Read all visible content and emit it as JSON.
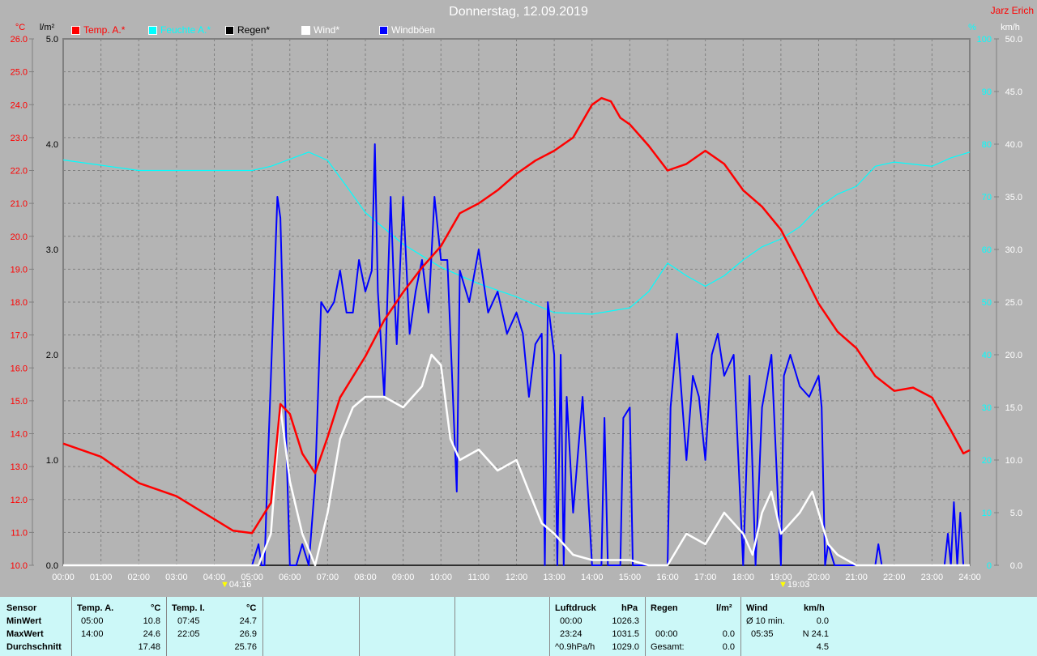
{
  "header": {
    "title": "Donnerstag, 12.09.2019",
    "author": "Jarz Erich"
  },
  "legend": [
    {
      "label": "Temp. A.*",
      "color": "#ff0000"
    },
    {
      "label": "Feuchte A.*",
      "color": "#00ffff"
    },
    {
      "label": "Regen*",
      "color": "#000000"
    },
    {
      "label": "Wind*",
      "color": "#ffffff"
    },
    {
      "label": "Windböen",
      "color": "#0000ff"
    }
  ],
  "markers": {
    "sunrise": "04:16",
    "sunset": "19:03"
  },
  "chart_data": {
    "type": "line",
    "title": "Donnerstag, 12.09.2019",
    "axes": {
      "temp": {
        "unit": "°C",
        "range": [
          10,
          26
        ],
        "ticks": [
          "10.0",
          "11.0",
          "12.0",
          "13.0",
          "14.0",
          "15.0",
          "16.0",
          "17.0",
          "18.0",
          "19.0",
          "20.0",
          "21.0",
          "22.0",
          "23.0",
          "24.0",
          "25.0",
          "26.0"
        ]
      },
      "rain": {
        "unit": "l/m²",
        "range": [
          0,
          5
        ],
        "ticks": [
          "0.0",
          "1.0",
          "2.0",
          "3.0",
          "4.0",
          "5.0"
        ]
      },
      "humidity": {
        "unit": "%",
        "range": [
          0,
          100
        ],
        "ticks": [
          "0",
          "10",
          "20",
          "30",
          "40",
          "50",
          "60",
          "70",
          "80",
          "90",
          "100"
        ]
      },
      "wind": {
        "unit": "km/h",
        "range": [
          0,
          50
        ],
        "ticks": [
          "0.0",
          "5.0",
          "10.0",
          "15.0",
          "20.0",
          "25.0",
          "30.0",
          "35.0",
          "40.0",
          "45.0",
          "50.0"
        ]
      },
      "x": {
        "range": [
          0,
          24
        ],
        "ticks": [
          "00:00",
          "01:00",
          "02:00",
          "03:00",
          "04:00",
          "05:00",
          "06:00",
          "07:00",
          "08:00",
          "09:00",
          "10:00",
          "11:00",
          "12:00",
          "13:00",
          "14:00",
          "15:00",
          "16:00",
          "17:00",
          "18:00",
          "19:00",
          "20:00",
          "21:00",
          "22:00",
          "23:00",
          "24:00"
        ]
      }
    },
    "grid": true,
    "series": [
      {
        "name": "Temp. A.*",
        "axis": "temp",
        "color": "#ff0000",
        "points": [
          [
            0,
            13.7
          ],
          [
            1,
            13.3
          ],
          [
            2,
            12.5
          ],
          [
            3,
            12.1
          ],
          [
            4,
            11.4
          ],
          [
            4.5,
            11.05
          ],
          [
            5,
            10.98
          ],
          [
            5.5,
            11.9
          ],
          [
            5.75,
            14.9
          ],
          [
            6,
            14.6
          ],
          [
            6.33,
            13.4
          ],
          [
            6.67,
            12.8
          ],
          [
            7,
            13.9
          ],
          [
            7.33,
            15.1
          ],
          [
            8,
            16.35
          ],
          [
            8.5,
            17.45
          ],
          [
            9,
            18.3
          ],
          [
            9.5,
            19.05
          ],
          [
            10,
            19.7
          ],
          [
            10.5,
            20.7
          ],
          [
            11,
            21
          ],
          [
            11.5,
            21.4
          ],
          [
            12,
            21.9
          ],
          [
            12.5,
            22.3
          ],
          [
            13,
            22.6
          ],
          [
            13.5,
            23
          ],
          [
            14,
            24
          ],
          [
            14.25,
            24.2
          ],
          [
            14.5,
            24.1
          ],
          [
            14.75,
            23.6
          ],
          [
            15,
            23.4
          ],
          [
            15.5,
            22.75
          ],
          [
            16,
            22
          ],
          [
            16.5,
            22.2
          ],
          [
            17,
            22.6
          ],
          [
            17.5,
            22.2
          ],
          [
            18,
            21.4
          ],
          [
            18.5,
            20.9
          ],
          [
            19,
            20.2
          ],
          [
            19.5,
            19.1
          ],
          [
            20,
            17.95
          ],
          [
            20.5,
            17.1
          ],
          [
            21,
            16.6
          ],
          [
            21.5,
            15.75
          ],
          [
            22,
            15.3
          ],
          [
            22.5,
            15.4
          ],
          [
            23,
            15.1
          ],
          [
            23.5,
            14.1
          ],
          [
            23.83,
            13.4
          ],
          [
            24,
            13.5
          ]
        ]
      },
      {
        "name": "Feuchte A.*",
        "axis": "humidity",
        "color": "#00ffff",
        "points": [
          [
            0,
            77
          ],
          [
            1,
            76
          ],
          [
            2,
            75
          ],
          [
            5,
            75
          ],
          [
            5.5,
            75.8
          ],
          [
            6.5,
            78.5
          ],
          [
            7,
            76.9
          ],
          [
            7.5,
            72
          ],
          [
            8,
            67
          ],
          [
            9,
            61
          ],
          [
            10,
            56.6
          ],
          [
            11,
            53.5
          ],
          [
            12,
            51
          ],
          [
            13,
            48
          ],
          [
            14,
            47.7
          ],
          [
            15,
            48.9
          ],
          [
            15.5,
            52
          ],
          [
            16,
            57.4
          ],
          [
            16.5,
            55
          ],
          [
            17,
            53
          ],
          [
            17.5,
            55
          ],
          [
            18,
            58
          ],
          [
            18.5,
            60.5
          ],
          [
            19,
            62
          ],
          [
            19.5,
            64.3
          ],
          [
            20,
            68
          ],
          [
            20.5,
            70.5
          ],
          [
            21,
            72
          ],
          [
            21.5,
            75.8
          ],
          [
            22,
            76.6
          ],
          [
            23,
            75.8
          ],
          [
            23.5,
            77.4
          ],
          [
            24,
            78.5
          ]
        ]
      },
      {
        "name": "Regen*",
        "axis": "rain",
        "color": "#000000",
        "points": [
          [
            0,
            0
          ],
          [
            24,
            0
          ]
        ]
      },
      {
        "name": "Wind*",
        "axis": "wind",
        "color": "#ffffff",
        "points": [
          [
            0,
            0
          ],
          [
            5.17,
            0
          ],
          [
            5.5,
            3
          ],
          [
            5.75,
            15
          ],
          [
            6,
            8
          ],
          [
            6.33,
            3
          ],
          [
            6.67,
            0
          ],
          [
            7,
            5
          ],
          [
            7.33,
            12
          ],
          [
            7.67,
            15
          ],
          [
            8,
            16
          ],
          [
            8.5,
            16
          ],
          [
            9,
            15
          ],
          [
            9.5,
            17
          ],
          [
            9.75,
            20
          ],
          [
            10,
            19
          ],
          [
            10.25,
            12
          ],
          [
            10.5,
            10
          ],
          [
            11,
            11
          ],
          [
            11.5,
            9
          ],
          [
            12,
            10
          ],
          [
            12.33,
            7
          ],
          [
            12.67,
            4
          ],
          [
            13,
            3
          ],
          [
            13.5,
            1
          ],
          [
            14,
            0.5
          ],
          [
            15,
            0.5
          ],
          [
            15.5,
            0
          ],
          [
            16,
            0
          ],
          [
            16.5,
            3
          ],
          [
            17,
            2
          ],
          [
            17.5,
            5
          ],
          [
            18,
            3
          ],
          [
            18.25,
            1
          ],
          [
            18.5,
            5
          ],
          [
            18.75,
            7
          ],
          [
            19,
            3
          ],
          [
            19.5,
            5
          ],
          [
            19.83,
            7
          ],
          [
            20,
            5
          ],
          [
            20.25,
            2
          ],
          [
            20.5,
            1
          ],
          [
            21,
            0
          ],
          [
            24,
            0
          ]
        ]
      },
      {
        "name": "Windböen",
        "axis": "wind",
        "color": "#0000ff",
        "points": [
          [
            0,
            0
          ],
          [
            5,
            0
          ],
          [
            5.17,
            2
          ],
          [
            5.25,
            0
          ],
          [
            5.33,
            0
          ],
          [
            5.42,
            10
          ],
          [
            5.67,
            35
          ],
          [
            5.75,
            33
          ],
          [
            5.92,
            10
          ],
          [
            6,
            0
          ],
          [
            6.17,
            0
          ],
          [
            6.33,
            2
          ],
          [
            6.5,
            0
          ],
          [
            6.67,
            8
          ],
          [
            6.83,
            25
          ],
          [
            7,
            24
          ],
          [
            7.17,
            25
          ],
          [
            7.33,
            28
          ],
          [
            7.5,
            24
          ],
          [
            7.67,
            24
          ],
          [
            7.83,
            29
          ],
          [
            8,
            26
          ],
          [
            8.17,
            28
          ],
          [
            8.25,
            40
          ],
          [
            8.33,
            26
          ],
          [
            8.5,
            16
          ],
          [
            8.67,
            35
          ],
          [
            8.75,
            27
          ],
          [
            8.83,
            21
          ],
          [
            9,
            35
          ],
          [
            9.17,
            22
          ],
          [
            9.33,
            26
          ],
          [
            9.5,
            29
          ],
          [
            9.67,
            24
          ],
          [
            9.83,
            35
          ],
          [
            10,
            29
          ],
          [
            10.17,
            29
          ],
          [
            10.33,
            15
          ],
          [
            10.42,
            7
          ],
          [
            10.5,
            28
          ],
          [
            10.75,
            25
          ],
          [
            11,
            30
          ],
          [
            11.25,
            24
          ],
          [
            11.5,
            26
          ],
          [
            11.75,
            22
          ],
          [
            12,
            24
          ],
          [
            12.17,
            22
          ],
          [
            12.33,
            16
          ],
          [
            12.5,
            21
          ],
          [
            12.67,
            22
          ],
          [
            12.75,
            0
          ],
          [
            12.83,
            25
          ],
          [
            13,
            20
          ],
          [
            13.08,
            0
          ],
          [
            13.17,
            20
          ],
          [
            13.25,
            0
          ],
          [
            13.33,
            16
          ],
          [
            13.5,
            5
          ],
          [
            13.75,
            16
          ],
          [
            14,
            0
          ],
          [
            14.25,
            0
          ],
          [
            14.33,
            14
          ],
          [
            14.42,
            0
          ],
          [
            14.75,
            0
          ],
          [
            14.83,
            14
          ],
          [
            15,
            15
          ],
          [
            15.08,
            0
          ],
          [
            16,
            0
          ],
          [
            16.08,
            15
          ],
          [
            16.25,
            22
          ],
          [
            16.5,
            10
          ],
          [
            16.67,
            18
          ],
          [
            16.83,
            16
          ],
          [
            17,
            10
          ],
          [
            17.17,
            20
          ],
          [
            17.33,
            22
          ],
          [
            17.5,
            18
          ],
          [
            17.75,
            20
          ],
          [
            18,
            0
          ],
          [
            18.17,
            18
          ],
          [
            18.33,
            0
          ],
          [
            18.5,
            15
          ],
          [
            18.75,
            20
          ],
          [
            19,
            0
          ],
          [
            19.08,
            18
          ],
          [
            19.25,
            20
          ],
          [
            19.5,
            17
          ],
          [
            19.75,
            16
          ],
          [
            20,
            18
          ],
          [
            20.08,
            15
          ],
          [
            20.17,
            0
          ],
          [
            20.25,
            2
          ],
          [
            20.42,
            0
          ],
          [
            21.5,
            0
          ],
          [
            21.58,
            2
          ],
          [
            21.67,
            0
          ],
          [
            23.33,
            0
          ],
          [
            23.42,
            3
          ],
          [
            23.5,
            0
          ],
          [
            23.58,
            6
          ],
          [
            23.67,
            0
          ],
          [
            23.75,
            5
          ],
          [
            23.83,
            0
          ],
          [
            24,
            0
          ]
        ]
      }
    ]
  },
  "summary": {
    "temp_a": {
      "sensor": "Sensor",
      "min_label": "MinWert",
      "max_label": "MaxWert",
      "avg_label": "Durchschnitt",
      "title": "Temp. A.",
      "unit": "°C",
      "min_time": "05:00",
      "min": "10.8",
      "max_time": "14:00",
      "max": "24.6",
      "avg": "17.48"
    },
    "temp_i": {
      "title": "Temp. I.",
      "unit": "°C",
      "min_time": "07:45",
      "min": "24.7",
      "max_time": "22:05",
      "max": "26.9",
      "avg": "25.76"
    },
    "pressure": {
      "title": "Luftdruck",
      "unit": "hPa",
      "min_time": "00:00",
      "min": "1026.3",
      "max_time": "23:24",
      "max": "1031.5",
      "trend": "^0.9hPa/h",
      "avg": "1029.0"
    },
    "rain": {
      "title": "Regen",
      "unit": "l/m²",
      "time": "00:00",
      "value": "0.0",
      "total_label": "Gesamt:",
      "total": "0.0"
    },
    "wind": {
      "title": "Wind",
      "unit": "km/h",
      "avg10_label": "Ø 10 min.",
      "avg10": "0.0",
      "max_time": "05:35",
      "max": "N 24.1",
      "avg": "4.5"
    }
  }
}
